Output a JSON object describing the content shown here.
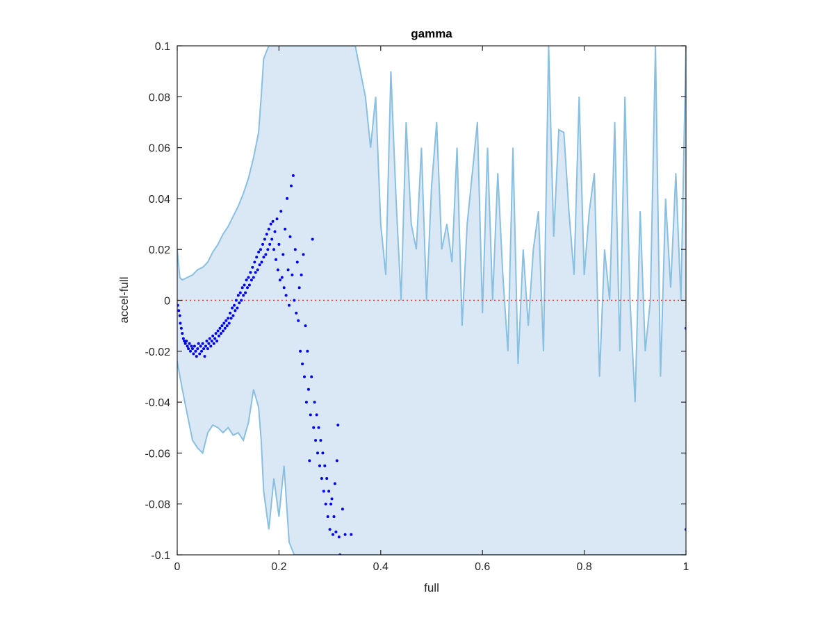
{
  "chart_data": {
    "type": "scatter",
    "title": "gamma",
    "xlabel": "full",
    "ylabel": "accel-full",
    "xlim": [
      0,
      1
    ],
    "ylim": [
      -0.1,
      0.1
    ],
    "xticks": [
      0,
      0.2,
      0.4,
      0.6,
      0.8,
      1
    ],
    "xtick_labels": [
      "0",
      "0.2",
      "0.4",
      "0.6",
      "0.8",
      "1"
    ],
    "yticks": [
      -0.1,
      -0.08,
      -0.06,
      -0.04,
      -0.02,
      0,
      0.02,
      0.04,
      0.06,
      0.08,
      0.1
    ],
    "ytick_labels": [
      "-0.1",
      "-0.08",
      "-0.06",
      "-0.04",
      "-0.02",
      "0",
      "0.02",
      "0.04",
      "0.06",
      "0.08",
      "0.1"
    ],
    "grid": false,
    "reference_line": {
      "y": 0,
      "style": "dotted",
      "color": "#e8332a"
    },
    "colors": {
      "band_fill": "#d9e8f4",
      "band_line": "#89bfe0",
      "points": "#0000f0",
      "axes": "#262626"
    },
    "band": {
      "upper": [
        [
          0,
          0.02
        ],
        [
          0.005,
          0.009
        ],
        [
          0.01,
          0.008
        ],
        [
          0.02,
          0.009
        ],
        [
          0.03,
          0.01
        ],
        [
          0.04,
          0.012
        ],
        [
          0.05,
          0.013
        ],
        [
          0.06,
          0.015
        ],
        [
          0.07,
          0.019
        ],
        [
          0.08,
          0.022
        ],
        [
          0.09,
          0.026
        ],
        [
          0.1,
          0.029
        ],
        [
          0.11,
          0.033
        ],
        [
          0.12,
          0.037
        ],
        [
          0.13,
          0.042
        ],
        [
          0.14,
          0.048
        ],
        [
          0.15,
          0.056
        ],
        [
          0.16,
          0.066
        ],
        [
          0.165,
          0.08
        ],
        [
          0.17,
          0.095
        ],
        [
          0.18,
          0.1
        ],
        [
          0.25,
          0.1
        ],
        [
          0.35,
          0.1
        ],
        [
          0.37,
          0.08
        ],
        [
          0.38,
          0.06
        ],
        [
          0.39,
          0.08
        ],
        [
          0.4,
          0.03
        ],
        [
          0.41,
          0.01
        ],
        [
          0.42,
          0.09
        ],
        [
          0.43,
          0.04
        ],
        [
          0.44,
          0.0
        ],
        [
          0.45,
          0.07
        ],
        [
          0.46,
          0.03
        ],
        [
          0.47,
          0.02
        ],
        [
          0.48,
          0.06
        ],
        [
          0.49,
          0.0
        ],
        [
          0.5,
          0.045
        ],
        [
          0.51,
          0.07
        ],
        [
          0.52,
          0.02
        ],
        [
          0.53,
          0.03
        ],
        [
          0.54,
          0.015
        ],
        [
          0.55,
          0.06
        ],
        [
          0.56,
          -0.01
        ],
        [
          0.57,
          0.03
        ],
        [
          0.58,
          0.05
        ],
        [
          0.59,
          0.07
        ],
        [
          0.6,
          -0.005
        ],
        [
          0.61,
          0.06
        ],
        [
          0.62,
          0.0
        ],
        [
          0.63,
          0.05
        ],
        [
          0.64,
          0.01
        ],
        [
          0.65,
          -0.02
        ],
        [
          0.66,
          0.06
        ],
        [
          0.67,
          -0.025
        ],
        [
          0.68,
          0.02
        ],
        [
          0.69,
          -0.01
        ],
        [
          0.7,
          0.02
        ],
        [
          0.71,
          0.035
        ],
        [
          0.72,
          -0.02
        ],
        [
          0.73,
          0.1
        ],
        [
          0.74,
          0.025
        ],
        [
          0.75,
          0.067
        ],
        [
          0.76,
          0.066
        ],
        [
          0.77,
          0.035
        ],
        [
          0.78,
          0.01
        ],
        [
          0.79,
          0.08
        ],
        [
          0.8,
          0.01
        ],
        [
          0.81,
          0.035
        ],
        [
          0.82,
          0.05
        ],
        [
          0.83,
          -0.03
        ],
        [
          0.84,
          0.02
        ],
        [
          0.85,
          0.0
        ],
        [
          0.86,
          0.07
        ],
        [
          0.87,
          -0.02
        ],
        [
          0.88,
          0.08
        ],
        [
          0.89,
          0.0
        ],
        [
          0.9,
          -0.04
        ],
        [
          0.91,
          0.035
        ],
        [
          0.92,
          -0.02
        ],
        [
          0.93,
          0.0
        ],
        [
          0.94,
          0.1
        ],
        [
          0.95,
          -0.03
        ],
        [
          0.96,
          0.04
        ],
        [
          0.97,
          0.005
        ],
        [
          0.98,
          0.05
        ],
        [
          0.99,
          0.0
        ],
        [
          1.0,
          0.1
        ]
      ],
      "lower": [
        [
          0,
          -0.024
        ],
        [
          0.01,
          -0.035
        ],
        [
          0.02,
          -0.045
        ],
        [
          0.03,
          -0.055
        ],
        [
          0.04,
          -0.058
        ],
        [
          0.05,
          -0.06
        ],
        [
          0.06,
          -0.052
        ],
        [
          0.07,
          -0.049
        ],
        [
          0.08,
          -0.05
        ],
        [
          0.09,
          -0.052
        ],
        [
          0.1,
          -0.05
        ],
        [
          0.11,
          -0.053
        ],
        [
          0.12,
          -0.052
        ],
        [
          0.13,
          -0.055
        ],
        [
          0.14,
          -0.048
        ],
        [
          0.15,
          -0.035
        ],
        [
          0.16,
          -0.042
        ],
        [
          0.165,
          -0.055
        ],
        [
          0.17,
          -0.075
        ],
        [
          0.18,
          -0.09
        ],
        [
          0.19,
          -0.07
        ],
        [
          0.2,
          -0.085
        ],
        [
          0.21,
          -0.065
        ],
        [
          0.22,
          -0.095
        ],
        [
          0.23,
          -0.1
        ],
        [
          0.25,
          -0.1
        ],
        [
          1.0,
          -0.1
        ]
      ]
    },
    "points": [
      [
        0.001,
        -0.002
      ],
      [
        0.003,
        -0.004
      ],
      [
        0.005,
        -0.006
      ],
      [
        0.006,
        -0.009
      ],
      [
        0.008,
        -0.011
      ],
      [
        0.01,
        -0.013
      ],
      [
        0.012,
        -0.015
      ],
      [
        0.014,
        -0.016
      ],
      [
        0.016,
        -0.017
      ],
      [
        0.018,
        -0.016
      ],
      [
        0.02,
        -0.018
      ],
      [
        0.022,
        -0.019
      ],
      [
        0.024,
        -0.017
      ],
      [
        0.026,
        -0.02
      ],
      [
        0.028,
        -0.018
      ],
      [
        0.03,
        -0.019
      ],
      [
        0.032,
        -0.021
      ],
      [
        0.034,
        -0.018
      ],
      [
        0.036,
        -0.02
      ],
      [
        0.038,
        -0.022
      ],
      [
        0.04,
        -0.019
      ],
      [
        0.042,
        -0.017
      ],
      [
        0.044,
        -0.021
      ],
      [
        0.046,
        -0.018
      ],
      [
        0.048,
        -0.02
      ],
      [
        0.05,
        -0.017
      ],
      [
        0.052,
        -0.019
      ],
      [
        0.054,
        -0.022
      ],
      [
        0.056,
        -0.018
      ],
      [
        0.058,
        -0.016
      ],
      [
        0.06,
        -0.019
      ],
      [
        0.062,
        -0.017
      ],
      [
        0.064,
        -0.015
      ],
      [
        0.066,
        -0.018
      ],
      [
        0.068,
        -0.016
      ],
      [
        0.07,
        -0.014
      ],
      [
        0.072,
        -0.017
      ],
      [
        0.074,
        -0.015
      ],
      [
        0.076,
        -0.013
      ],
      [
        0.078,
        -0.016
      ],
      [
        0.08,
        -0.012
      ],
      [
        0.082,
        -0.014
      ],
      [
        0.084,
        -0.011
      ],
      [
        0.086,
        -0.013
      ],
      [
        0.088,
        -0.01
      ],
      [
        0.09,
        -0.012
      ],
      [
        0.092,
        -0.009
      ],
      [
        0.094,
        -0.011
      ],
      [
        0.096,
        -0.008
      ],
      [
        0.098,
        -0.01
      ],
      [
        0.1,
        -0.007
      ],
      [
        0.102,
        -0.009
      ],
      [
        0.104,
        -0.005
      ],
      [
        0.106,
        -0.007
      ],
      [
        0.108,
        -0.003
      ],
      [
        0.11,
        -0.006
      ],
      [
        0.112,
        -0.002
      ],
      [
        0.114,
        -0.004
      ],
      [
        0.116,
        0.0
      ],
      [
        0.118,
        -0.003
      ],
      [
        0.12,
        0.002
      ],
      [
        0.122,
        -0.001
      ],
      [
        0.124,
        0.003
      ],
      [
        0.126,
        0.0
      ],
      [
        0.128,
        0.005
      ],
      [
        0.13,
        0.002
      ],
      [
        0.132,
        0.006
      ],
      [
        0.134,
        0.003
      ],
      [
        0.136,
        0.008
      ],
      [
        0.138,
        0.005
      ],
      [
        0.14,
        0.009
      ],
      [
        0.142,
        0.006
      ],
      [
        0.144,
        0.011
      ],
      [
        0.146,
        0.008
      ],
      [
        0.148,
        0.013
      ],
      [
        0.15,
        0.009
      ],
      [
        0.152,
        0.015
      ],
      [
        0.154,
        0.011
      ],
      [
        0.156,
        0.017
      ],
      [
        0.158,
        0.012
      ],
      [
        0.16,
        0.019
      ],
      [
        0.162,
        0.014
      ],
      [
        0.164,
        0.02
      ],
      [
        0.166,
        0.015
      ],
      [
        0.168,
        0.022
      ],
      [
        0.17,
        0.017
      ],
      [
        0.172,
        0.024
      ],
      [
        0.174,
        0.018
      ],
      [
        0.176,
        0.026
      ],
      [
        0.178,
        0.02
      ],
      [
        0.18,
        0.028
      ],
      [
        0.182,
        0.022
      ],
      [
        0.184,
        0.03
      ],
      [
        0.186,
        0.024
      ],
      [
        0.188,
        0.031
      ],
      [
        0.19,
        0.02
      ],
      [
        0.192,
        0.027
      ],
      [
        0.194,
        0.016
      ],
      [
        0.196,
        0.032
      ],
      [
        0.198,
        0.012
      ],
      [
        0.2,
        0.022
      ],
      [
        0.202,
        0.008
      ],
      [
        0.204,
        0.035
      ],
      [
        0.206,
        0.009
      ],
      [
        0.208,
        0.018
      ],
      [
        0.21,
        0.005
      ],
      [
        0.212,
        0.028
      ],
      [
        0.214,
        0.002
      ],
      [
        0.216,
        0.04
      ],
      [
        0.218,
        0.012
      ],
      [
        0.22,
        -0.002
      ],
      [
        0.222,
        0.025
      ],
      [
        0.224,
        0.045
      ],
      [
        0.226,
        0.01
      ],
      [
        0.228,
        0.049
      ],
      [
        0.23,
        0.0
      ],
      [
        0.232,
        0.02
      ],
      [
        0.234,
        -0.005
      ],
      [
        0.236,
        0.015
      ],
      [
        0.238,
        -0.008
      ],
      [
        0.24,
        0.005
      ],
      [
        0.242,
        -0.02
      ],
      [
        0.244,
        0.01
      ],
      [
        0.246,
        -0.025
      ],
      [
        0.248,
        0.018
      ],
      [
        0.25,
        -0.03
      ],
      [
        0.252,
        -0.01
      ],
      [
        0.254,
        -0.04
      ],
      [
        0.256,
        -0.02
      ],
      [
        0.258,
        -0.035
      ],
      [
        0.26,
        -0.063
      ],
      [
        0.262,
        -0.045
      ],
      [
        0.264,
        -0.03
      ],
      [
        0.266,
        0.024
      ],
      [
        0.268,
        -0.05
      ],
      [
        0.27,
        -0.04
      ],
      [
        0.272,
        -0.055
      ],
      [
        0.274,
        -0.045
      ],
      [
        0.276,
        -0.06
      ],
      [
        0.278,
        -0.05
      ],
      [
        0.28,
        -0.065
      ],
      [
        0.282,
        -0.055
      ],
      [
        0.284,
        -0.07
      ],
      [
        0.286,
        -0.06
      ],
      [
        0.288,
        -0.075
      ],
      [
        0.29,
        -0.065
      ],
      [
        0.292,
        -0.08
      ],
      [
        0.294,
        -0.07
      ],
      [
        0.296,
        -0.085
      ],
      [
        0.298,
        -0.075
      ],
      [
        0.3,
        -0.09
      ],
      [
        0.302,
        -0.08
      ],
      [
        0.304,
        -0.078
      ],
      [
        0.306,
        -0.092
      ],
      [
        0.308,
        -0.085
      ],
      [
        0.31,
        -0.072
      ],
      [
        0.312,
        -0.091
      ],
      [
        0.314,
        -0.063
      ],
      [
        0.316,
        -0.049
      ],
      [
        0.318,
        -0.093
      ],
      [
        0.32,
        -0.1
      ],
      [
        0.325,
        -0.082
      ],
      [
        0.33,
        -0.092
      ],
      [
        0.342,
        -0.092
      ],
      [
        1.0,
        -0.011
      ],
      [
        1.0,
        -0.09
      ]
    ]
  }
}
